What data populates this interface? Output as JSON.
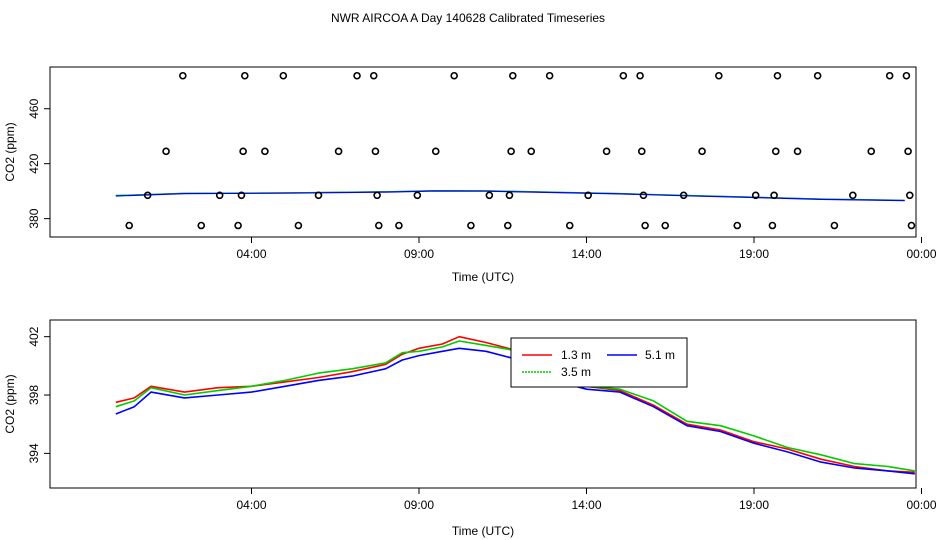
{
  "title": "NWR AIRCOA A  Day 140628  Calibrated Timeseries",
  "chart_data": [
    {
      "type": "scatter",
      "xlabel": "Time (UTC)",
      "ylabel": "CO2 (ppm)",
      "xlim": [
        0.0,
        24.0
      ],
      "ylim": [
        371.0,
        486.0
      ],
      "xticks": [
        {
          "v": 5.0,
          "label": "04:00"
        },
        {
          "v": 10.0,
          "label": "09:00"
        },
        {
          "v": 15.0,
          "label": "14:00"
        },
        {
          "v": 20.0,
          "label": "19:00"
        },
        {
          "v": 25.0,
          "label": "00:00"
        }
      ],
      "yticks": [
        {
          "v": 380,
          "label": "380"
        },
        {
          "v": 420,
          "label": "420"
        },
        {
          "v": 460,
          "label": "460"
        }
      ],
      "grid": false,
      "points": [
        {
          "x": 1.35,
          "y": 375
        },
        {
          "x": 1.9,
          "y": 397
        },
        {
          "x": 2.45,
          "y": 429
        },
        {
          "x": 2.95,
          "y": 484
        },
        {
          "x": 3.5,
          "y": 375
        },
        {
          "x": 4.05,
          "y": 397
        },
        {
          "x": 4.6,
          "y": 375
        },
        {
          "x": 4.7,
          "y": 397
        },
        {
          "x": 4.75,
          "y": 429
        },
        {
          "x": 4.8,
          "y": 484
        },
        {
          "x": 5.4,
          "y": 429
        },
        {
          "x": 5.95,
          "y": 484
        },
        {
          "x": 6.4,
          "y": 375
        },
        {
          "x": 7.0,
          "y": 397
        },
        {
          "x": 7.6,
          "y": 429
        },
        {
          "x": 8.15,
          "y": 484
        },
        {
          "x": 8.65,
          "y": 484
        },
        {
          "x": 8.7,
          "y": 429
        },
        {
          "x": 8.75,
          "y": 397
        },
        {
          "x": 8.8,
          "y": 375
        },
        {
          "x": 9.4,
          "y": 375
        },
        {
          "x": 9.95,
          "y": 397
        },
        {
          "x": 10.5,
          "y": 429
        },
        {
          "x": 11.05,
          "y": 484
        },
        {
          "x": 11.55,
          "y": 375
        },
        {
          "x": 12.1,
          "y": 397
        },
        {
          "x": 12.65,
          "y": 375
        },
        {
          "x": 12.7,
          "y": 397
        },
        {
          "x": 12.75,
          "y": 429
        },
        {
          "x": 12.8,
          "y": 484
        },
        {
          "x": 13.35,
          "y": 429
        },
        {
          "x": 13.9,
          "y": 484
        },
        {
          "x": 14.5,
          "y": 375
        },
        {
          "x": 15.05,
          "y": 397
        },
        {
          "x": 15.6,
          "y": 429
        },
        {
          "x": 16.1,
          "y": 484
        },
        {
          "x": 16.6,
          "y": 484
        },
        {
          "x": 16.65,
          "y": 429
        },
        {
          "x": 16.7,
          "y": 397
        },
        {
          "x": 16.75,
          "y": 375
        },
        {
          "x": 17.35,
          "y": 375
        },
        {
          "x": 17.9,
          "y": 397
        },
        {
          "x": 18.45,
          "y": 429
        },
        {
          "x": 18.95,
          "y": 484
        },
        {
          "x": 19.5,
          "y": 375
        },
        {
          "x": 20.05,
          "y": 397
        },
        {
          "x": 20.55,
          "y": 375
        },
        {
          "x": 20.6,
          "y": 397
        },
        {
          "x": 20.65,
          "y": 429
        },
        {
          "x": 20.7,
          "y": 484
        },
        {
          "x": 21.3,
          "y": 429
        },
        {
          "x": 21.9,
          "y": 484
        },
        {
          "x": 22.4,
          "y": 375
        },
        {
          "x": 22.95,
          "y": 397
        },
        {
          "x": 23.5,
          "y": 429
        },
        {
          "x": 24.05,
          "y": 484
        },
        {
          "x": 24.55,
          "y": 484
        },
        {
          "x": 24.6,
          "y": 429
        },
        {
          "x": 24.65,
          "y": 397
        },
        {
          "x": 24.7,
          "y": 375
        }
      ],
      "series": [
        {
          "color": "#ff0000",
          "values": [
            [
              0.95,
              396.7
            ],
            [
              3,
              398.4
            ],
            [
              6,
              398.7
            ],
            [
              9,
              399.5
            ],
            [
              10.5,
              400.3
            ],
            [
              12,
              400.2
            ],
            [
              14,
              399.2
            ],
            [
              16,
              398.2
            ],
            [
              18,
              396.8
            ],
            [
              20,
              395.6
            ],
            [
              22,
              394.2
            ],
            [
              24.5,
              393.3
            ]
          ]
        },
        {
          "color": "#00cc00",
          "values": [
            [
              0.95,
              396.9
            ],
            [
              3,
              398.5
            ],
            [
              6,
              398.8
            ],
            [
              9,
              399.6
            ],
            [
              10.5,
              400.4
            ],
            [
              12,
              400.3
            ],
            [
              14,
              399.3
            ],
            [
              16,
              398.3
            ],
            [
              18,
              396.9
            ],
            [
              20,
              395.7
            ],
            [
              22,
              394.3
            ],
            [
              24.5,
              393.4
            ]
          ]
        },
        {
          "color": "#0000ff",
          "values": [
            [
              0.95,
              396.5
            ],
            [
              3,
              398.2
            ],
            [
              6,
              398.5
            ],
            [
              9,
              399.3
            ],
            [
              10.5,
              400.1
            ],
            [
              12,
              400.0
            ],
            [
              14,
              399.0
            ],
            [
              16,
              398.0
            ],
            [
              18,
              396.6
            ],
            [
              20,
              395.4
            ],
            [
              22,
              394.0
            ],
            [
              24.5,
              393.1
            ]
          ]
        }
      ]
    },
    {
      "type": "line",
      "xlabel": "Time (UTC)",
      "ylabel": "CO2 (ppm)",
      "xlim": [
        0.0,
        24.0
      ],
      "ylim": [
        391.9,
        402.8
      ],
      "xticks": [
        {
          "v": 5.0,
          "label": "04:00"
        },
        {
          "v": 10.0,
          "label": "09:00"
        },
        {
          "v": 15.0,
          "label": "14:00"
        },
        {
          "v": 20.0,
          "label": "19:00"
        },
        {
          "v": 25.0,
          "label": "00:00"
        }
      ],
      "yticks": [
        {
          "v": 394,
          "label": "394"
        },
        {
          "v": 398,
          "label": "398"
        },
        {
          "v": 402,
          "label": "402"
        }
      ],
      "grid": false,
      "legend": "top-right",
      "series": [
        {
          "name": "1.3 m",
          "color": "#ff0000",
          "values": [
            [
              0.95,
              397.5
            ],
            [
              1.5,
              397.8
            ],
            [
              2,
              398.6
            ],
            [
              3,
              398.2
            ],
            [
              4,
              398.5
            ],
            [
              5,
              398.6
            ],
            [
              6,
              398.9
            ],
            [
              7,
              399.2
            ],
            [
              8,
              399.6
            ],
            [
              9,
              400.1
            ],
            [
              9.5,
              400.8
            ],
            [
              10,
              401.2
            ],
            [
              10.7,
              401.5
            ],
            [
              11.2,
              402.0
            ],
            [
              12,
              401.6
            ],
            [
              13,
              401.0
            ],
            [
              14,
              399.5
            ],
            [
              15,
              398.6
            ],
            [
              16,
              398.3
            ],
            [
              17,
              397.3
            ],
            [
              18,
              396.0
            ],
            [
              19,
              395.6
            ],
            [
              20,
              394.8
            ],
            [
              21,
              394.3
            ],
            [
              22,
              393.6
            ],
            [
              23,
              393.1
            ],
            [
              24,
              392.8
            ],
            [
              24.8,
              392.7
            ]
          ]
        },
        {
          "name": "3.5 m",
          "color": "#00cc00",
          "values": [
            [
              0.95,
              397.2
            ],
            [
              1.5,
              397.6
            ],
            [
              2,
              398.5
            ],
            [
              3,
              398.0
            ],
            [
              4,
              398.3
            ],
            [
              5,
              398.6
            ],
            [
              6,
              399.0
            ],
            [
              7,
              399.5
            ],
            [
              8,
              399.8
            ],
            [
              9,
              400.2
            ],
            [
              9.5,
              400.9
            ],
            [
              10,
              401.0
            ],
            [
              10.7,
              401.3
            ],
            [
              11.2,
              401.7
            ],
            [
              12,
              401.4
            ],
            [
              13,
              401.0
            ],
            [
              14,
              399.3
            ],
            [
              15,
              398.6
            ],
            [
              16,
              398.4
            ],
            [
              17,
              397.6
            ],
            [
              18,
              396.2
            ],
            [
              19,
              395.9
            ],
            [
              20,
              395.2
            ],
            [
              21,
              394.4
            ],
            [
              22,
              393.9
            ],
            [
              23,
              393.3
            ],
            [
              24,
              393.1
            ],
            [
              24.8,
              392.8
            ]
          ]
        },
        {
          "name": "5.1 m",
          "color": "#0000ff",
          "values": [
            [
              0.95,
              396.7
            ],
            [
              1.5,
              397.2
            ],
            [
              2,
              398.2
            ],
            [
              3,
              397.8
            ],
            [
              4,
              398.0
            ],
            [
              5,
              398.2
            ],
            [
              6,
              398.6
            ],
            [
              7,
              399.0
            ],
            [
              8,
              399.3
            ],
            [
              9,
              399.8
            ],
            [
              9.5,
              400.4
            ],
            [
              10,
              400.7
            ],
            [
              10.7,
              401.0
            ],
            [
              11.2,
              401.2
            ],
            [
              12,
              401.0
            ],
            [
              13,
              400.4
            ],
            [
              14,
              399.0
            ],
            [
              15,
              398.4
            ],
            [
              16,
              398.2
            ],
            [
              17,
              397.2
            ],
            [
              18,
              395.9
            ],
            [
              19,
              395.5
            ],
            [
              20,
              394.7
            ],
            [
              21,
              394.1
            ],
            [
              22,
              393.4
            ],
            [
              23,
              393.0
            ],
            [
              24,
              392.8
            ],
            [
              24.8,
              392.6
            ]
          ]
        }
      ]
    }
  ]
}
